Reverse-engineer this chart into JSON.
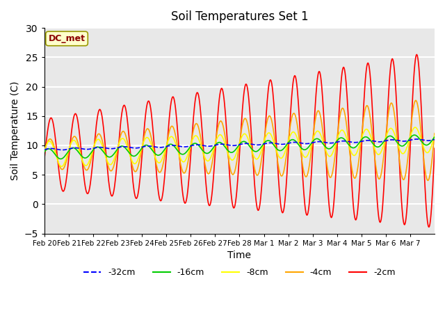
{
  "title": "Soil Temperatures Set 1",
  "xlabel": "Time",
  "ylabel": "Soil Temperature (C)",
  "ylim": [
    -5,
    30
  ],
  "yticks": [
    -5,
    0,
    5,
    10,
    15,
    20,
    25,
    30
  ],
  "plot_bg_color": "#e8e8e8",
  "grid_color": "white",
  "annotation_text": "DC_met",
  "annotation_color": "#8B0000",
  "annotation_bg": "#FFFFCC",
  "annotation_edge": "#999900",
  "xtick_labels": [
    "Feb 20",
    "Feb 21",
    "Feb 22",
    "Feb 23",
    "Feb 24",
    "Feb 25",
    "Feb 26",
    "Feb 27",
    "Feb 28",
    "Mar 1",
    "Mar 2",
    "Mar 3",
    "Mar 4",
    "Mar 5",
    "Mar 6",
    "Mar 7"
  ],
  "legend_labels": [
    "-32cm",
    "-16cm",
    "-8cm",
    "-4cm",
    "-2cm"
  ],
  "legend_colors": [
    "blue",
    "#00CC00",
    "yellow",
    "#FFA500",
    "red"
  ],
  "legend_linestyles": [
    "--",
    "-",
    "-",
    "-",
    "-"
  ]
}
